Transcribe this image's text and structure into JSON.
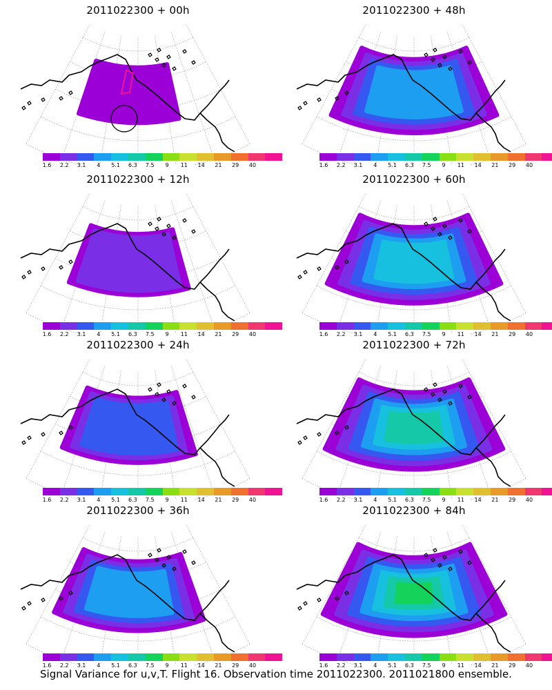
{
  "colorbar": {
    "colors": [
      "#9b00d7",
      "#7a2ee6",
      "#3558f0",
      "#1e9ef0",
      "#18c0e0",
      "#14c8a8",
      "#14d25a",
      "#8ade14",
      "#c8e030",
      "#e0c030",
      "#e89a28",
      "#f07030",
      "#f03870",
      "#f01494"
    ],
    "tick_labels": [
      "1.6",
      "2.2",
      "3.1",
      "4",
      "5.1",
      "6.3",
      "7.5",
      "9",
      "11",
      "14",
      "21",
      "29",
      "40"
    ]
  },
  "panels": [
    {
      "title": "2011022300 + 00h",
      "level": 0,
      "spread": 0.55
    },
    {
      "title": "2011022300 + 48h",
      "level": 3,
      "spread": 0.88
    },
    {
      "title": "2011022300 + 12h",
      "level": 1,
      "spread": 0.65
    },
    {
      "title": "2011022300 + 60h",
      "level": 4,
      "spread": 0.92
    },
    {
      "title": "2011022300 + 24h",
      "level": 2,
      "spread": 0.72
    },
    {
      "title": "2011022300 + 72h",
      "level": 5,
      "spread": 0.94
    },
    {
      "title": "2011022300 + 36h",
      "level": 3,
      "spread": 0.8
    },
    {
      "title": "2011022300 + 84h",
      "level": 6,
      "spread": 0.96
    }
  ],
  "footer": "Signal Variance for u,v,T. Flight 16. Observation time 2011022300. 2011021800 ensemble."
}
